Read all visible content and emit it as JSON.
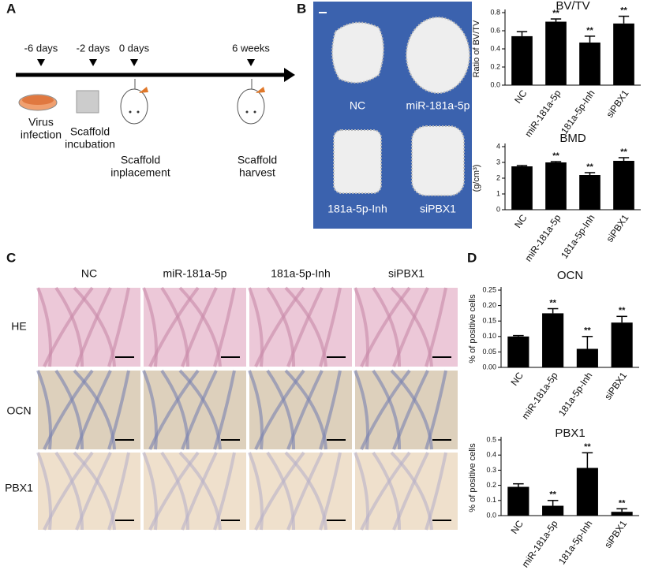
{
  "panel_labels": [
    "A",
    "B",
    "C",
    "D"
  ],
  "timeline": {
    "times": [
      "-6 days",
      "-2 days",
      "0 days",
      "6 weeks"
    ],
    "steps": [
      [
        "Virus",
        "infection"
      ],
      [
        "Scaffold",
        "incubation"
      ],
      [
        "Scaffold",
        "inplacement"
      ],
      [
        "Scaffold",
        "harvest"
      ]
    ]
  },
  "scaffolds": [
    "NC",
    "miR-181a-5p",
    "181a-5p-Inh",
    "siPBX1"
  ],
  "histology": {
    "columns": [
      "NC",
      "miR-181a-5p",
      "181a-5p-Inh",
      "siPBX1"
    ],
    "rows": [
      "HE",
      "OCN",
      "PBX1"
    ]
  },
  "chart_data": [
    {
      "type": "bar",
      "title": "BV/TV",
      "ylabel": "Ratio of BV/TV",
      "color": "#000000",
      "categories": [
        "NC",
        "miR-181a-5p",
        "181a-5p-Inh",
        "siPBX1"
      ],
      "values": [
        0.54,
        0.7,
        0.47,
        0.68
      ],
      "errors": [
        0.05,
        0.03,
        0.07,
        0.08
      ],
      "significance": [
        null,
        "**",
        "**",
        "**"
      ],
      "ylim": [
        0,
        0.8
      ],
      "yticks": [
        {
          "value": 0,
          "label": "0.0"
        },
        0.2,
        0.4,
        0.6,
        0.8
      ]
    },
    {
      "type": "bar",
      "title": "BMD",
      "ylabel": "(g/cm³)",
      "color": "#000000",
      "categories": [
        "NC",
        "miR-181a-5p",
        "181a-5p-Inh",
        "siPBX1"
      ],
      "values": [
        2.75,
        3.0,
        2.2,
        3.1
      ],
      "errors": [
        0.05,
        0.05,
        0.15,
        0.2
      ],
      "significance": [
        null,
        "**",
        "**",
        "**"
      ],
      "ylim": [
        0,
        4
      ],
      "yticks": [
        0,
        1,
        2,
        3,
        4
      ]
    },
    {
      "type": "bar",
      "title": "OCN",
      "ylabel": "% of positive cells",
      "color": "#000000",
      "categories": [
        "NC",
        "miR-181a-5p",
        "181a-5p-Inh",
        "siPBX1"
      ],
      "values": [
        0.1,
        0.175,
        0.06,
        0.145
      ],
      "errors": [
        0.003,
        0.015,
        0.04,
        0.02
      ],
      "significance": [
        null,
        "**",
        "**",
        "**"
      ],
      "ylim": [
        0,
        0.25
      ],
      "yticks": [
        {
          "value": 0,
          "label": "0.00"
        },
        0.05,
        {
          "value": 0.1,
          "label": "0.10"
        },
        0.15,
        {
          "value": 0.2,
          "label": "0.20"
        },
        0.25
      ]
    },
    {
      "type": "bar",
      "title": "PBX1",
      "ylabel": "% of positive cells",
      "color": "#000000",
      "categories": [
        "NC",
        "miR-181a-5p",
        "181a-5p-Inh",
        "siPBX1"
      ],
      "values": [
        0.19,
        0.065,
        0.315,
        0.025
      ],
      "errors": [
        0.02,
        0.035,
        0.1,
        0.02
      ],
      "significance": [
        null,
        "**",
        "**",
        "**"
      ],
      "ylim": [
        0,
        0.5
      ],
      "yticks": [
        {
          "value": 0,
          "label": "0.0"
        },
        0.1,
        0.2,
        0.3,
        0.4,
        0.5
      ]
    }
  ]
}
